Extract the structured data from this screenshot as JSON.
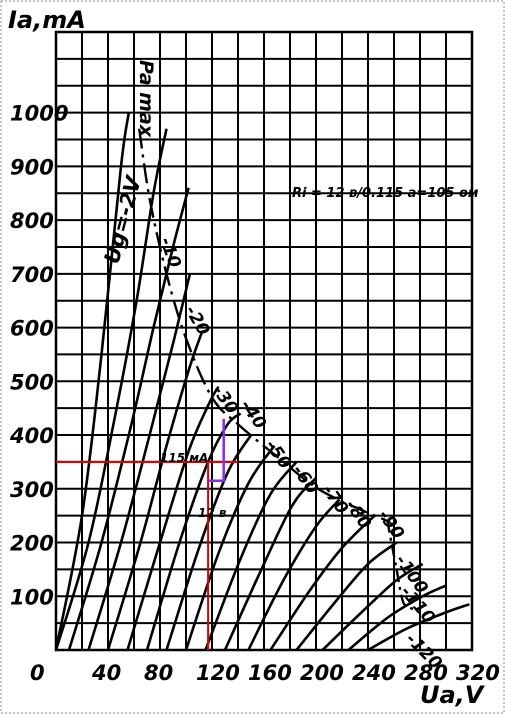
{
  "chart_data": {
    "type": "line",
    "title": "",
    "ylabel": "Ia,mA",
    "xlabel": "Ua,V",
    "xlim": [
      0,
      320
    ],
    "ylim": [
      0,
      1000
    ],
    "grid": true,
    "x_ticks": [
      "0",
      "40",
      "80",
      "120",
      "160",
      "200",
      "240",
      "280",
      "320"
    ],
    "y_ticks": [
      "100",
      "200",
      "300",
      "400",
      "500",
      "600",
      "700",
      "800",
      "900",
      "1000"
    ],
    "curves": [
      {
        "label": "Ug=-2V",
        "points": [
          [
            0,
            0
          ],
          [
            20,
            250
          ],
          [
            35,
            550
          ],
          [
            50,
            900
          ],
          [
            56,
            1000
          ]
        ]
      },
      {
        "label": "-10",
        "points": [
          [
            0,
            0
          ],
          [
            25,
            200
          ],
          [
            45,
            430
          ],
          [
            62,
            650
          ],
          [
            75,
            850
          ],
          [
            85,
            970
          ]
        ]
      },
      {
        "label": "-20",
        "points": [
          [
            10,
            0
          ],
          [
            35,
            200
          ],
          [
            58,
            420
          ],
          [
            75,
            600
          ],
          [
            90,
            750
          ],
          [
            102,
            860
          ]
        ]
      },
      {
        "label": "-30",
        "points": [
          [
            25,
            0
          ],
          [
            50,
            200
          ],
          [
            72,
            400
          ],
          [
            90,
            570
          ],
          [
            103,
            700
          ]
        ]
      },
      {
        "label": "-40",
        "points": [
          [
            40,
            0
          ],
          [
            65,
            200
          ],
          [
            85,
            380
          ],
          [
            102,
            520
          ],
          [
            112,
            590
          ]
        ]
      },
      {
        "label": "-50",
        "points": [
          [
            55,
            0
          ],
          [
            80,
            200
          ],
          [
            102,
            370
          ],
          [
            118,
            460
          ],
          [
            125,
            490
          ]
        ]
      },
      {
        "label": "-60",
        "points": [
          [
            70,
            0
          ],
          [
            95,
            200
          ],
          [
            117,
            350
          ],
          [
            132,
            420
          ],
          [
            142,
            440
          ]
        ]
      },
      {
        "label": "-70",
        "points": [
          [
            85,
            0
          ],
          [
            110,
            190
          ],
          [
            132,
            330
          ],
          [
            150,
            400
          ]
        ]
      },
      {
        "label": "-80",
        "points": [
          [
            100,
            0
          ],
          [
            125,
            180
          ],
          [
            148,
            310
          ],
          [
            168,
            380
          ]
        ]
      },
      {
        "label": "-90",
        "points": [
          [
            115,
            0
          ],
          [
            142,
            170
          ],
          [
            165,
            290
          ],
          [
            185,
            350
          ]
        ]
      },
      {
        "label": "-100",
        "points": [
          [
            130,
            0
          ],
          [
            158,
            150
          ],
          [
            182,
            270
          ],
          [
            200,
            320
          ]
        ]
      },
      {
        "label": "-110",
        "points": [
          [
            148,
            0
          ],
          [
            175,
            130
          ],
          [
            200,
            230
          ],
          [
            218,
            280
          ]
        ]
      },
      {
        "label": "-120",
        "points": [
          [
            165,
            0
          ],
          [
            195,
            110
          ],
          [
            220,
            190
          ],
          [
            245,
            250
          ]
        ]
      },
      {
        "label": "",
        "points": [
          [
            185,
            0
          ],
          [
            215,
            90
          ],
          [
            240,
            160
          ],
          [
            262,
            200
          ]
        ]
      },
      {
        "label": "",
        "points": [
          [
            205,
            0
          ],
          [
            235,
            70
          ],
          [
            262,
            130
          ],
          [
            282,
            160
          ]
        ]
      },
      {
        "label": "",
        "points": [
          [
            225,
            0
          ],
          [
            255,
            60
          ],
          [
            282,
            100
          ],
          [
            300,
            120
          ]
        ]
      },
      {
        "label": "",
        "points": [
          [
            240,
            0
          ],
          [
            270,
            40
          ],
          [
            300,
            70
          ],
          [
            318,
            85
          ]
        ]
      }
    ],
    "pa_max": {
      "label": "Pa max",
      "points": [
        [
          64,
          970
        ],
        [
          72,
          840
        ],
        [
          85,
          700
        ],
        [
          100,
          580
        ],
        [
          120,
          470
        ],
        [
          140,
          420
        ],
        [
          170,
          360
        ],
        [
          205,
          295
        ],
        [
          255,
          240
        ]
      ]
    },
    "load_line_dashed": {
      "points": [
        [
          255,
          240
        ],
        [
          258,
          200
        ],
        [
          262,
          150
        ],
        [
          265,
          110
        ],
        [
          268,
          85
        ],
        [
          276,
          75
        ]
      ]
    },
    "annotations": {
      "ri_text": "Ri = 12  в/0.115 а=105 ом",
      "current_label": "115 мА",
      "voltage_label": "12 в"
    },
    "operating_point": {
      "x": 117,
      "y": 350
    },
    "triangle": {
      "x": [
        117,
        129
      ],
      "y": [
        315,
        430
      ]
    },
    "colors": {
      "guide": "#e00000",
      "triangle": "#8a2be2",
      "grid": "#000000"
    }
  }
}
